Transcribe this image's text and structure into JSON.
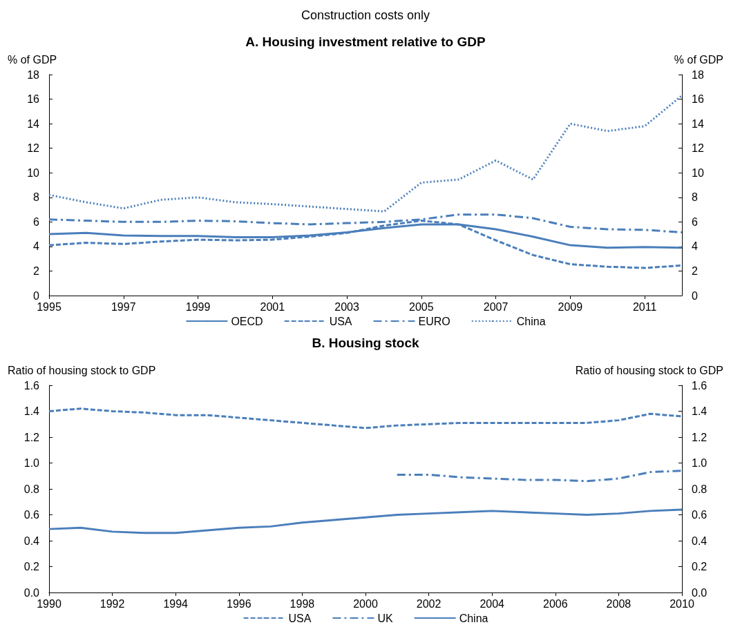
{
  "chart_data": [
    {
      "type": "line",
      "subtitle": "Construction costs only",
      "title": "A. Housing investment relative to GDP",
      "ylabel": "% of GDP",
      "y2label": "% of GDP",
      "categories": [
        "1995",
        null,
        "1997",
        null,
        "1999",
        null,
        "2001",
        null,
        "2003",
        null,
        "2005",
        null,
        "2007",
        null,
        "2009",
        null,
        "2011",
        null
      ],
      "series": [
        {
          "name": "OECD",
          "color": "#4a7ebb",
          "line_style": "solid",
          "values": [
            5.0,
            5.1,
            4.9,
            4.85,
            4.85,
            4.75,
            4.75,
            4.9,
            5.15,
            5.5,
            5.8,
            5.8,
            5.4,
            4.8,
            4.1,
            3.9,
            3.95,
            3.9
          ]
        },
        {
          "name": "USA",
          "color": "#4a7ebb",
          "line_style": "dashed",
          "values": [
            4.1,
            4.3,
            4.2,
            4.4,
            4.55,
            4.5,
            4.55,
            4.8,
            5.1,
            5.7,
            6.1,
            5.8,
            4.5,
            3.3,
            2.55,
            2.35,
            2.25,
            2.45
          ]
        },
        {
          "name": "EURO",
          "color": "#4a7ebb",
          "line_style": "dashdot",
          "values": [
            6.2,
            6.1,
            6.0,
            6.0,
            6.1,
            6.05,
            5.9,
            5.8,
            5.9,
            6.0,
            6.2,
            6.6,
            6.6,
            6.3,
            5.6,
            5.4,
            5.35,
            5.15
          ]
        },
        {
          "name": "China",
          "color": "#4a7ebb",
          "line_style": "dotted",
          "values": [
            8.2,
            7.6,
            7.1,
            7.8,
            8.0,
            7.6,
            7.45,
            7.25,
            7.05,
            6.85,
            9.2,
            9.45,
            11.0,
            9.45,
            14.0,
            13.4,
            13.8,
            16.3
          ]
        }
      ],
      "ylim": [
        0,
        18
      ],
      "yticks": [
        0,
        2,
        4,
        6,
        8,
        10,
        12,
        14,
        16,
        18
      ],
      "y2lim": [
        0,
        18
      ],
      "y2ticks": [
        0,
        2,
        4,
        6,
        8,
        10,
        12,
        14,
        16,
        18
      ],
      "grid": false,
      "legend": "bottom",
      "marker": "none"
    },
    {
      "type": "line",
      "title": "B. Housing stock",
      "ylabel": "Ratio of housing stock to GDP",
      "y2label": "Ratio of housing stock to GDP",
      "categories": [
        "1990",
        null,
        "1992",
        null,
        "1994",
        null,
        "1996",
        null,
        "1998",
        null,
        "2000",
        null,
        "2002",
        null,
        "2004",
        null,
        "2006",
        null,
        "2008",
        null,
        "2010"
      ],
      "series": [
        {
          "name": "USA",
          "color": "#4a7ebb",
          "line_style": "dashed",
          "values": [
            1.4,
            1.42,
            1.4,
            1.39,
            1.37,
            1.37,
            1.35,
            1.33,
            1.31,
            1.29,
            1.27,
            1.29,
            1.3,
            1.31,
            1.31,
            1.31,
            1.31,
            1.31,
            1.33,
            1.38,
            1.36
          ]
        },
        {
          "name": "UK",
          "color": "#4a7ebb",
          "line_style": "dashdot",
          "values": [
            null,
            null,
            null,
            null,
            null,
            null,
            null,
            null,
            null,
            null,
            null,
            0.91,
            0.91,
            0.89,
            0.88,
            0.87,
            0.87,
            0.86,
            0.88,
            0.93,
            0.94
          ]
        },
        {
          "name": "China",
          "color": "#4a7ebb",
          "line_style": "solid",
          "values": [
            0.49,
            0.5,
            0.47,
            0.46,
            0.46,
            0.48,
            0.5,
            0.51,
            0.54,
            0.56,
            0.58,
            0.6,
            0.61,
            0.62,
            0.63,
            0.62,
            0.61,
            0.6,
            0.61,
            0.63,
            0.64
          ]
        }
      ],
      "ylim": [
        0,
        1.6
      ],
      "yticks": [
        {
          "value": 0,
          "label": "0.0"
        },
        0.2,
        0.4,
        0.6,
        0.8,
        {
          "value": 1,
          "label": "1.0"
        },
        1.2,
        1.4,
        1.6
      ],
      "y2lim": [
        0,
        1.6
      ],
      "y2ticks": [
        {
          "value": 0,
          "label": "0.0"
        },
        0.2,
        0.4,
        0.6,
        0.8,
        {
          "value": 1,
          "label": "1.0"
        },
        1.2,
        1.4,
        1.6
      ],
      "grid": false,
      "legend": "bottom",
      "marker": "none"
    }
  ]
}
